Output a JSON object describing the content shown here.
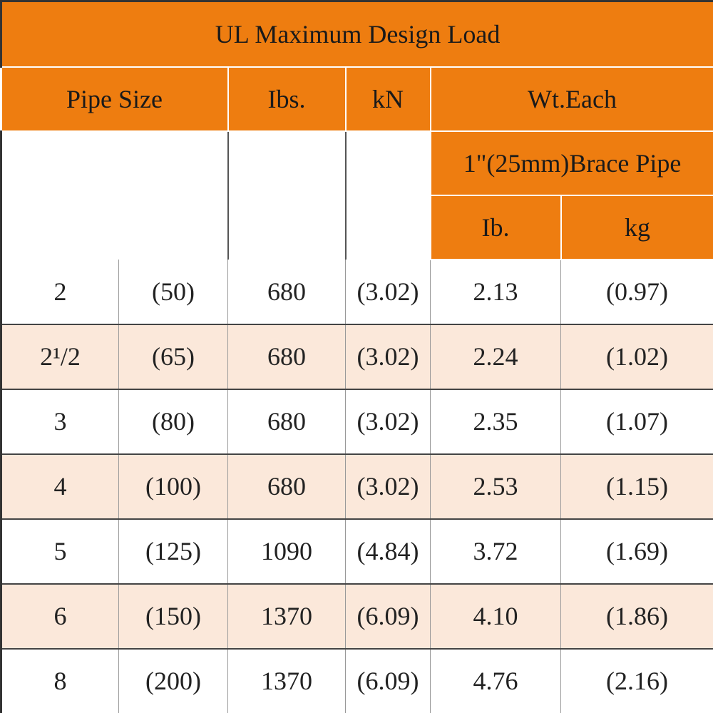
{
  "table": {
    "title": "UL Maximum Design Load",
    "header": {
      "pipe_size": "Pipe Size",
      "lbs": "Ibs.",
      "kn": "kN",
      "wt_each": "Wt.Each",
      "brace_pipe": "1\"(25mm)Brace Pipe",
      "lb": "Ib.",
      "kg": "kg"
    },
    "rows": [
      [
        "2",
        "(50)",
        "680",
        "(3.02)",
        "2.13",
        "(0.97)"
      ],
      [
        "2¹/2",
        "(65)",
        "680",
        "(3.02)",
        "2.24",
        "(1.02)"
      ],
      [
        "3",
        "(80)",
        "680",
        "(3.02)",
        "2.35",
        "(1.07)"
      ],
      [
        "4",
        "(100)",
        "680",
        "(3.02)",
        "2.53",
        "(1.15)"
      ],
      [
        "5",
        "(125)",
        "1090",
        "(4.84)",
        "3.72",
        "(1.69)"
      ],
      [
        "6",
        "(150)",
        "1370",
        "(6.09)",
        "4.10",
        "(1.86)"
      ],
      [
        "8",
        "(200)",
        "1370",
        "(6.09)",
        "4.76",
        "(2.16)"
      ]
    ]
  }
}
